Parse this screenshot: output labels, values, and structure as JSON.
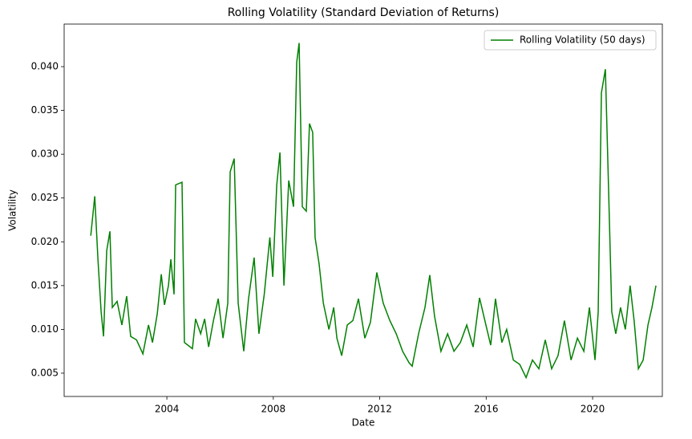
{
  "chart_data": {
    "type": "line",
    "title": "Rolling Volatility (Standard Deviation of Returns)",
    "xlabel": "Date",
    "ylabel": "Volatility",
    "x": [
      2001.14,
      2001.29,
      2001.41,
      2001.53,
      2001.62,
      2001.74,
      2001.86,
      2001.95,
      2002.13,
      2002.31,
      2002.49,
      2002.64,
      2002.86,
      2003.1,
      2003.31,
      2003.46,
      2003.64,
      2003.79,
      2003.91,
      2004.06,
      2004.15,
      2004.27,
      2004.33,
      2004.57,
      2004.66,
      2004.96,
      2005.08,
      2005.27,
      2005.42,
      2005.57,
      2005.75,
      2005.93,
      2006.11,
      2006.29,
      2006.38,
      2006.53,
      2006.68,
      2006.89,
      2007.07,
      2007.28,
      2007.46,
      2007.66,
      2007.87,
      2007.98,
      2008.13,
      2008.25,
      2008.4,
      2008.58,
      2008.76,
      2008.88,
      2008.97,
      2009.09,
      2009.24,
      2009.36,
      2009.48,
      2009.57,
      2009.72,
      2009.88,
      2010.09,
      2010.27,
      2010.39,
      2010.57,
      2010.78,
      2010.99,
      2011.2,
      2011.44,
      2011.65,
      2011.89,
      2012.13,
      2012.38,
      2012.62,
      2012.86,
      2013.1,
      2013.22,
      2013.46,
      2013.7,
      2013.88,
      2014.06,
      2014.3,
      2014.55,
      2014.79,
      2015.03,
      2015.27,
      2015.51,
      2015.75,
      2015.99,
      2016.17,
      2016.35,
      2016.59,
      2016.77,
      2017.02,
      2017.26,
      2017.5,
      2017.74,
      2017.98,
      2018.22,
      2018.46,
      2018.7,
      2018.94,
      2019.19,
      2019.43,
      2019.67,
      2019.88,
      2020.09,
      2020.21,
      2020.33,
      2020.48,
      2020.6,
      2020.72,
      2020.87,
      2021.05,
      2021.23,
      2021.41,
      2021.56,
      2021.72,
      2021.9,
      2022.08,
      2022.23,
      2022.38
    ],
    "series": [
      {
        "name": "Rolling Volatility (50 days)",
        "color": "#008000",
        "values": [
          0.0207,
          0.0252,
          0.018,
          0.012,
          0.0092,
          0.019,
          0.0212,
          0.0125,
          0.0132,
          0.0105,
          0.0138,
          0.0092,
          0.0088,
          0.0072,
          0.0105,
          0.0085,
          0.0118,
          0.0163,
          0.0128,
          0.015,
          0.018,
          0.014,
          0.0265,
          0.0268,
          0.0085,
          0.0078,
          0.0112,
          0.0095,
          0.0112,
          0.008,
          0.011,
          0.0135,
          0.009,
          0.013,
          0.028,
          0.0295,
          0.013,
          0.0075,
          0.0135,
          0.0182,
          0.0095,
          0.014,
          0.0205,
          0.016,
          0.0265,
          0.0302,
          0.015,
          0.027,
          0.024,
          0.0405,
          0.0427,
          0.024,
          0.0235,
          0.0335,
          0.0325,
          0.0205,
          0.0175,
          0.013,
          0.01,
          0.0125,
          0.009,
          0.007,
          0.0105,
          0.011,
          0.0135,
          0.009,
          0.0108,
          0.0165,
          0.013,
          0.011,
          0.0095,
          0.0075,
          0.0062,
          0.0058,
          0.0095,
          0.0125,
          0.0162,
          0.0115,
          0.0075,
          0.0095,
          0.0075,
          0.0085,
          0.0105,
          0.008,
          0.0136,
          0.0105,
          0.0082,
          0.0135,
          0.0085,
          0.01,
          0.0065,
          0.006,
          0.0045,
          0.0065,
          0.0055,
          0.0088,
          0.0055,
          0.007,
          0.011,
          0.0065,
          0.009,
          0.0075,
          0.0125,
          0.0065,
          0.012,
          0.037,
          0.0397,
          0.026,
          0.012,
          0.0095,
          0.0125,
          0.01,
          0.015,
          0.011,
          0.0055,
          0.0065,
          0.0105,
          0.0125,
          0.015
        ]
      }
    ],
    "xlim": [
      2000.14,
      2022.62
    ],
    "xticks": [
      2004,
      2008,
      2012,
      2016,
      2020
    ],
    "ylim": [
      0.00234,
      0.04486
    ],
    "yticks": [
      0.005,
      {
        "value": 0.01,
        "label": "0.010"
      },
      0.015,
      {
        "value": 0.02,
        "label": "0.020"
      },
      0.025,
      {
        "value": 0.03,
        "label": "0.030"
      },
      0.035,
      {
        "value": 0.04,
        "label": "0.040"
      }
    ],
    "grid": false,
    "legend": "upper right"
  }
}
